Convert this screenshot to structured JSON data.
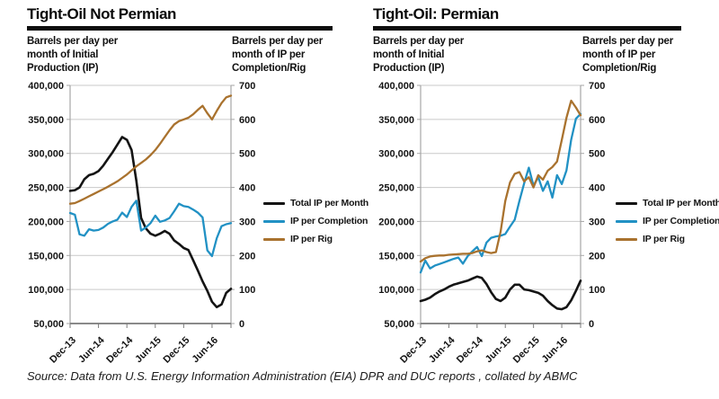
{
  "source_note": "Source: Data from U.S. Energy Information Administration (EIA) DPR and DUC reports , collated by ABMC",
  "colors": {
    "total_black": "#141414",
    "completion_blue": "#2191c4",
    "rig_brown": "#a9722e",
    "gridline": "#c9c9c9",
    "axis_border": "#a6a6a6",
    "axis_bottom": "#7a7a7a"
  },
  "chart_data": [
    {
      "type": "line",
      "title": "Tight-Oil Not Permian",
      "ylabel_left": "Barrels per day per\nmonth of Initial\nProduction (IP)",
      "ylabel_right": "Barrels per day per\nmonth of IP per\nCompletion/Rig",
      "y_left": {
        "min": 50000,
        "max": 400000,
        "ticks": [
          "400,000",
          "350,000",
          "300,000",
          "250,000",
          "200,000",
          "150,000",
          "100,000",
          "50,000"
        ]
      },
      "y_right": {
        "min": 0,
        "max": 700,
        "ticks": [
          "700",
          "600",
          "500",
          "400",
          "300",
          "200",
          "100",
          "0"
        ]
      },
      "x_ticks": [
        "Dec-13",
        "Jun-14",
        "Dec-14",
        "Jun-15",
        "Dec-15",
        "Jun-16"
      ],
      "x_tick_indices": [
        0,
        6,
        12,
        18,
        24,
        30
      ],
      "x_range_note": "monthly points Dec-13 through Oct-16",
      "grid": true,
      "legend_position": "right",
      "series": [
        {
          "name": "Total IP per Month",
          "axis": "left",
          "color": "total_black",
          "values": [
            245000,
            246000,
            250000,
            262000,
            268000,
            270000,
            274000,
            282000,
            292000,
            302000,
            313000,
            324000,
            320000,
            305000,
            260000,
            205000,
            190000,
            182000,
            179000,
            182000,
            186000,
            182000,
            172000,
            167000,
            161000,
            158000,
            143000,
            128000,
            112000,
            98000,
            82000,
            74000,
            78000,
            95000,
            101000
          ]
        },
        {
          "name": "IP per Completion",
          "axis": "right",
          "color": "completion_blue",
          "values": [
            325,
            320,
            262,
            258,
            277,
            273,
            275,
            282,
            293,
            300,
            305,
            326,
            313,
            343,
            361,
            273,
            282,
            295,
            317,
            299,
            303,
            310,
            330,
            352,
            345,
            343,
            335,
            326,
            312,
            215,
            198,
            251,
            286,
            292,
            295
          ]
        },
        {
          "name": "IP per Rig",
          "axis": "right",
          "color": "rig_brown",
          "values": [
            352,
            354,
            360,
            367,
            374,
            381,
            388,
            395,
            402,
            410,
            418,
            428,
            438,
            450,
            462,
            472,
            482,
            495,
            510,
            528,
            548,
            568,
            585,
            595,
            600,
            605,
            615,
            628,
            640,
            618,
            600,
            625,
            648,
            665,
            670
          ]
        }
      ]
    },
    {
      "type": "line",
      "title": "Tight-Oil: Permian",
      "ylabel_left": "Barrels per day per\nmonth of Initial\nProduction (IP)",
      "ylabel_right": "Barrels per day per\nmonth of IP per\nCompletion/Rig",
      "y_left": {
        "min": 50000,
        "max": 400000,
        "ticks": [
          "400,000",
          "350,000",
          "300,000",
          "250,000",
          "200,000",
          "150,000",
          "100,000",
          "50,000"
        ]
      },
      "y_right": {
        "min": 0,
        "max": 700,
        "ticks": [
          "700",
          "600",
          "500",
          "400",
          "300",
          "200",
          "100",
          "0"
        ]
      },
      "x_ticks": [
        "Dec-13",
        "Jun-14",
        "Dec-14",
        "Jun-15",
        "Dec-15",
        "Jun-16"
      ],
      "x_tick_indices": [
        0,
        6,
        12,
        18,
        24,
        30
      ],
      "x_range_note": "monthly points Dec-13 through Oct-16",
      "grid": true,
      "legend_position": "right",
      "series": [
        {
          "name": "Total IP per Month",
          "axis": "left",
          "color": "total_black",
          "values": [
            83000,
            85000,
            88000,
            93000,
            97000,
            100000,
            104000,
            107000,
            109000,
            111000,
            113000,
            116000,
            119000,
            117000,
            108000,
            96000,
            86000,
            83000,
            88000,
            100000,
            107000,
            107000,
            100000,
            99000,
            97000,
            95000,
            91000,
            83000,
            77000,
            72000,
            71000,
            74000,
            84000,
            98000,
            113000
          ]
        },
        {
          "name": "IP per Completion",
          "axis": "right",
          "color": "completion_blue",
          "values": [
            150,
            185,
            162,
            170,
            175,
            180,
            185,
            190,
            194,
            176,
            198,
            212,
            225,
            198,
            238,
            252,
            256,
            258,
            263,
            285,
            305,
            360,
            412,
            458,
            405,
            430,
            390,
            418,
            370,
            436,
            410,
            450,
            540,
            602,
            616
          ]
        },
        {
          "name": "IP per Rig",
          "axis": "right",
          "color": "rig_brown",
          "values": [
            182,
            192,
            197,
            199,
            200,
            200,
            202,
            203,
            204,
            205,
            205,
            207,
            212,
            215,
            210,
            207,
            210,
            270,
            360,
            415,
            440,
            445,
            418,
            430,
            400,
            436,
            423,
            449,
            460,
            476,
            540,
            605,
            655,
            635,
            612
          ]
        }
      ]
    }
  ]
}
